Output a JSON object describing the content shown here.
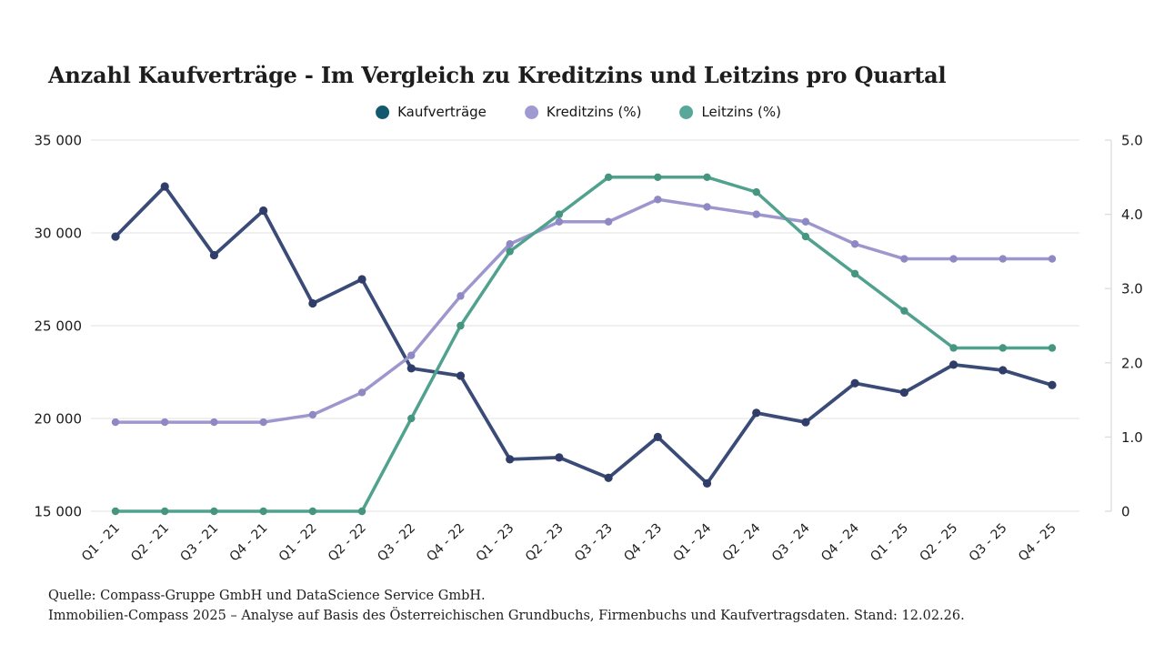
{
  "title": "Anzahl Kaufverträge - Im Vergleich zu Kreditzins und Leitzins pro Quartal",
  "legend": {
    "items": [
      {
        "label": "Kaufverträge",
        "color": "#14586f"
      },
      {
        "label": "Kreditzins (%)",
        "color": "#a09ad2"
      },
      {
        "label": "Leitzins (%)",
        "color": "#58a899"
      }
    ]
  },
  "source": {
    "line1": "Quelle: Compass-Gruppe GmbH und DataScience Service GmbH.",
    "line2": "Immobilien-Compass 2025 – Analyse auf Basis des Österreichischen Grundbuchs, Firmenbuchs und Kaufvertragsdaten. Stand: 12.02.26."
  },
  "chart_data": {
    "type": "line",
    "title": "Anzahl Kaufverträge - Im Vergleich zu Kreditzins und Leitzins pro Quartal",
    "categories": [
      "Q1 - 21",
      "Q2 - 21",
      "Q3 - 21",
      "Q4 - 21",
      "Q1 - 22",
      "Q2 - 22",
      "Q3 - 22",
      "Q4 - 22",
      "Q1 - 23",
      "Q2 - 23",
      "Q3 - 23",
      "Q4 - 23",
      "Q1 - 24",
      "Q2 - 24",
      "Q3 - 24",
      "Q4 - 24",
      "Q1 - 25",
      "Q2 - 25",
      "Q3 - 25",
      "Q4 - 25"
    ],
    "series": [
      {
        "name": "Kaufverträge",
        "axis": "left",
        "color": "#3a4b77",
        "marker_color": "#2f3d68",
        "values": [
          29800,
          32500,
          28800,
          31200,
          26200,
          27500,
          22700,
          22300,
          17800,
          17900,
          16800,
          19000,
          16500,
          20300,
          19800,
          21900,
          21400,
          22900,
          22600,
          21800
        ]
      },
      {
        "name": "Kreditzins (%)",
        "axis": "right",
        "color": "#9d97ce",
        "marker_color": "#8f89c3",
        "values": [
          1.2,
          1.2,
          1.2,
          1.2,
          1.3,
          1.6,
          2.1,
          2.9,
          3.6,
          3.9,
          3.9,
          4.2,
          4.1,
          4.0,
          3.9,
          3.6,
          3.4,
          3.4,
          3.4,
          3.4
        ]
      },
      {
        "name": "Leitzins (%)",
        "axis": "right",
        "color": "#50a28e",
        "marker_color": "#45957f",
        "values": [
          0,
          0,
          0,
          0,
          0,
          0,
          1.25,
          2.5,
          3.5,
          4.0,
          4.5,
          4.5,
          4.5,
          4.3,
          3.7,
          3.2,
          2.7,
          2.2,
          2.2,
          2.2
        ]
      }
    ],
    "left_axis": {
      "min": 15000,
      "max": 35000,
      "tick_values": [
        15000,
        20000,
        25000,
        30000,
        35000
      ],
      "tick_labels": [
        "15 000",
        "20 000",
        "25 000",
        "30 000",
        "35 000"
      ]
    },
    "right_axis": {
      "min": 0,
      "max": 5,
      "tick_values": [
        0,
        1,
        2,
        3,
        4,
        5
      ],
      "tick_labels": [
        "0",
        "1.0",
        "2.0",
        "3.0",
        "4.0",
        "5.0"
      ]
    },
    "grid": true,
    "legend_position": "top"
  }
}
